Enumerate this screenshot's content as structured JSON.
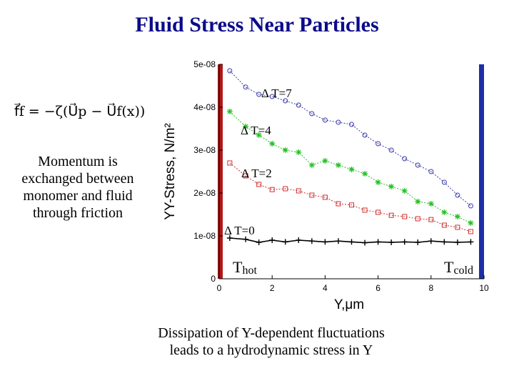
{
  "title": "Fluid Stress Near Particles",
  "equation": "f⃗f = −ζ(U⃗p − U⃗f(x))",
  "momentum_text": "Momentum is exchanged between monomer and fluid through friction",
  "caption_line1": "Dissipation of Y-dependent fluctuations",
  "caption_line2": "leads to a hydrodynamic stress in Y",
  "labels": {
    "dt7": "Δ T=7",
    "dt4": "Δ T=4",
    "dt2": "Δ T=2",
    "dt0": "Δ T=0",
    "thot_main": "T",
    "thot_sub": "hot",
    "tcold_main": "T",
    "tcold_sub": "cold"
  },
  "colors": {
    "title": "#0b0b8a",
    "hot_bar": "#b01818",
    "cold_bar": "#1c2fa8",
    "dt7": "#3a3aa8",
    "dt4": "#20c020",
    "dt2": "#d03030",
    "dt0": "#000000"
  },
  "chart_data": {
    "type": "line",
    "xlabel": "Y,μm",
    "ylabel": "YY-Stress, N/m²",
    "xlim": [
      0,
      10
    ],
    "ylim": [
      0,
      5e-08
    ],
    "xticks": [
      "0",
      "2",
      "4",
      "6",
      "8",
      "10"
    ],
    "xtick_values": [
      0,
      2,
      4,
      6,
      8,
      10
    ],
    "yticks": [
      "0",
      "1e-08",
      "2e-08",
      "3e-08",
      "4e-08",
      "5e-08"
    ],
    "ytick_values": [
      0,
      1e-08,
      2e-08,
      3e-08,
      4e-08,
      5e-08
    ],
    "series": [
      {
        "name": "Δ T=7",
        "marker": "circle",
        "color_key": "dt7",
        "x": [
          0.4,
          1.0,
          1.5,
          2.0,
          2.5,
          3.0,
          3.5,
          4.0,
          4.5,
          5.0,
          5.5,
          6.0,
          6.5,
          7.0,
          7.5,
          8.0,
          8.5,
          9.0,
          9.5
        ],
        "y": [
          4.85e-08,
          4.47e-08,
          4.3e-08,
          4.25e-08,
          4.15e-08,
          4.05e-08,
          3.85e-08,
          3.7e-08,
          3.65e-08,
          3.6e-08,
          3.35e-08,
          3.15e-08,
          3e-08,
          2.8e-08,
          2.65e-08,
          2.5e-08,
          2.25e-08,
          1.95e-08,
          1.7e-08
        ]
      },
      {
        "name": "Δ T=4",
        "marker": "star",
        "color_key": "dt4",
        "x": [
          0.4,
          1.0,
          1.5,
          2.0,
          2.5,
          3.0,
          3.5,
          4.0,
          4.5,
          5.0,
          5.5,
          6.0,
          6.5,
          7.0,
          7.5,
          8.0,
          8.5,
          9.0,
          9.5
        ],
        "y": [
          3.9e-08,
          3.55e-08,
          3.35e-08,
          3.15e-08,
          3e-08,
          2.95e-08,
          2.65e-08,
          2.75e-08,
          2.65e-08,
          2.55e-08,
          2.45e-08,
          2.25e-08,
          2.15e-08,
          2.05e-08,
          1.8e-08,
          1.75e-08,
          1.55e-08,
          1.45e-08,
          1.3e-08
        ]
      },
      {
        "name": "Δ T=2",
        "marker": "square",
        "color_key": "dt2",
        "x": [
          0.4,
          1.0,
          1.5,
          2.0,
          2.5,
          3.0,
          3.5,
          4.0,
          4.5,
          5.0,
          5.5,
          6.0,
          6.5,
          7.0,
          7.5,
          8.0,
          8.5,
          9.0,
          9.5
        ],
        "y": [
          2.7e-08,
          2.4e-08,
          2.2e-08,
          2.08e-08,
          2.1e-08,
          2.05e-08,
          1.95e-08,
          1.9e-08,
          1.75e-08,
          1.72e-08,
          1.6e-08,
          1.55e-08,
          1.48e-08,
          1.45e-08,
          1.4e-08,
          1.38e-08,
          1.25e-08,
          1.2e-08,
          1.1e-08
        ]
      },
      {
        "name": "Δ T=0",
        "marker": "plus",
        "color_key": "dt0",
        "x": [
          0.4,
          1.0,
          1.5,
          2.0,
          2.5,
          3.0,
          3.5,
          4.0,
          4.5,
          5.0,
          5.5,
          6.0,
          6.5,
          7.0,
          7.5,
          8.0,
          8.5,
          9.0,
          9.5
        ],
        "y": [
          9.5e-09,
          9.2e-09,
          8.5e-09,
          9e-09,
          8.6e-09,
          9e-09,
          8.8e-09,
          8.6e-09,
          8.8e-09,
          8.6e-09,
          8.4e-09,
          8.6e-09,
          8.5e-09,
          8.6e-09,
          8.5e-09,
          8.8e-09,
          8.6e-09,
          8.5e-09,
          8.6e-09
        ]
      }
    ]
  }
}
